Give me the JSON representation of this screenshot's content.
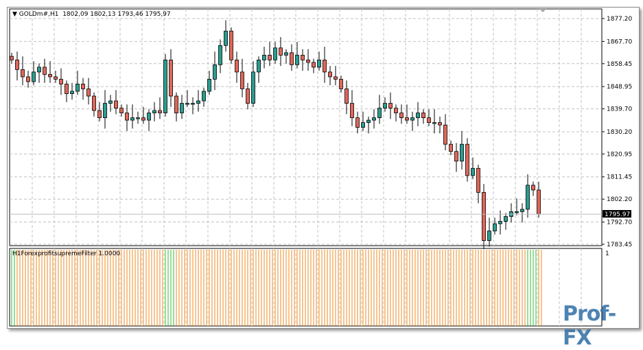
{
  "header": {
    "symbol": "GOLDm#,H1",
    "ohlc": "1802,09 1802,13 1793,46 1795,97"
  },
  "indicator": {
    "label": "H1ForexprofitsupremeFilter 1.0000",
    "axis_label": "1"
  },
  "logo": "Prof-FX",
  "colors": {
    "bull": "#2a9d8f",
    "bear": "#e0675a",
    "up_filter": "#33bb33",
    "down_filter": "#ee8822",
    "grid": "#c0c0c0"
  },
  "chart_data": {
    "type": "candlestick",
    "ylim": [
      1783.45,
      1877.2
    ],
    "y_ticks": [
      "1877.20",
      "1867.70",
      "1858.45",
      "1848.95",
      "1839.70",
      "1830.20",
      "1820.95",
      "1811.45",
      "1802.20",
      "1792.70",
      "1783.45"
    ],
    "last_price": "1795.97",
    "grid": true,
    "closes": [
      1860,
      1856,
      1853,
      1851,
      1855,
      1857,
      1854,
      1853,
      1852,
      1850,
      1846,
      1847,
      1850,
      1848,
      1845,
      1839,
      1836,
      1842,
      1843,
      1840,
      1838,
      1835,
      1836,
      1836,
      1835,
      1838,
      1839,
      1838,
      1860,
      1845,
      1838,
      1842,
      1842,
      1842,
      1843,
      1847,
      1852,
      1858,
      1866,
      1872,
      1860,
      1855,
      1848,
      1842,
      1855,
      1860,
      1862,
      1860,
      1865,
      1862,
      1863,
      1858,
      1862,
      1860,
      1859,
      1857,
      1860,
      1855,
      1853,
      1852,
      1848,
      1842,
      1836,
      1832,
      1834,
      1835,
      1836,
      1840,
      1842,
      1840,
      1838,
      1836,
      1835,
      1836,
      1838,
      1836,
      1834,
      1834,
      1833,
      1825,
      1822,
      1818,
      1825,
      1812,
      1815,
      1805,
      1785,
      1789,
      1792,
      1793,
      1795,
      1797,
      1797,
      1798,
      1808,
      1806,
      1796
    ],
    "filter": [
      1,
      0,
      0,
      0,
      0,
      0,
      0,
      0,
      0,
      0,
      0,
      0,
      0,
      0,
      0,
      0,
      0,
      0,
      0,
      0,
      0,
      0,
      0,
      0,
      0,
      0,
      0,
      0,
      1,
      1,
      0,
      0,
      0,
      0,
      0,
      0,
      0,
      0,
      0,
      0,
      0,
      0,
      0,
      0,
      0,
      0,
      0,
      0,
      0,
      0,
      0,
      0,
      0,
      0,
      0,
      0,
      0,
      0,
      0,
      0,
      0,
      0,
      0,
      0,
      0,
      0,
      0,
      0,
      0,
      0,
      0,
      0,
      0,
      0,
      0,
      0,
      0,
      0,
      0,
      0,
      0,
      0,
      0,
      0,
      0,
      0,
      0,
      0,
      0,
      0,
      0,
      0,
      0,
      0,
      1,
      1,
      0
    ]
  }
}
